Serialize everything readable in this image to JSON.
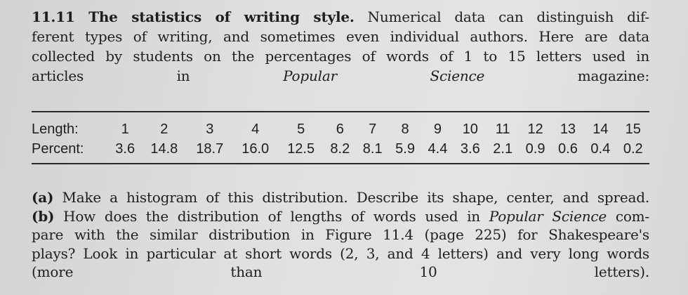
{
  "intro_lines": [
    [
      {
        "t": "11.11 The statistics of writing style.",
        "s": "b"
      },
      {
        "t": " Numerical data can distinguish dif-"
      }
    ],
    [
      {
        "t": "ferent types of writing, and sometimes even individual authors. Here are data"
      }
    ],
    [
      {
        "t": "collected by students on the percentages of words of 1 to 15 letters used in"
      }
    ],
    [
      {
        "t": "articles in "
      },
      {
        "t": "Popular Science",
        "s": "i"
      },
      {
        "t": " magazine:"
      }
    ]
  ],
  "table": {
    "length_label": "Length:",
    "percent_label": "Percent:",
    "lengths": [
      "1",
      "2",
      "3",
      "4",
      "5",
      "6",
      "7",
      "8",
      "9",
      "10",
      "11",
      "12",
      "13",
      "14",
      "15"
    ],
    "percents": [
      "3.6",
      "14.8",
      "18.7",
      "16.0",
      "12.5",
      "8.2",
      "8.1",
      "5.9",
      "4.4",
      "3.6",
      "2.1",
      "0.9",
      "0.6",
      "0.4",
      "0.2"
    ]
  },
  "question_lines": [
    [
      {
        "t": "(a)",
        "s": "b"
      },
      {
        "t": " Make a histogram of this distribution. Describe its shape, center, and spread."
      }
    ],
    [
      {
        "t": "(b)",
        "s": "b"
      },
      {
        "t": " How does the distribution of lengths of words used in "
      },
      {
        "t": "Popular Science",
        "s": "i"
      },
      {
        "t": " com-"
      }
    ],
    [
      {
        "t": "pare with the similar distribution in Figure 11.4 (page 225) for Shakespeare's"
      }
    ],
    [
      {
        "t": "plays? Look in particular at short words (2, 3, and 4 letters) and very long words"
      }
    ],
    [
      {
        "t": "(more than 10 letters)."
      }
    ]
  ]
}
